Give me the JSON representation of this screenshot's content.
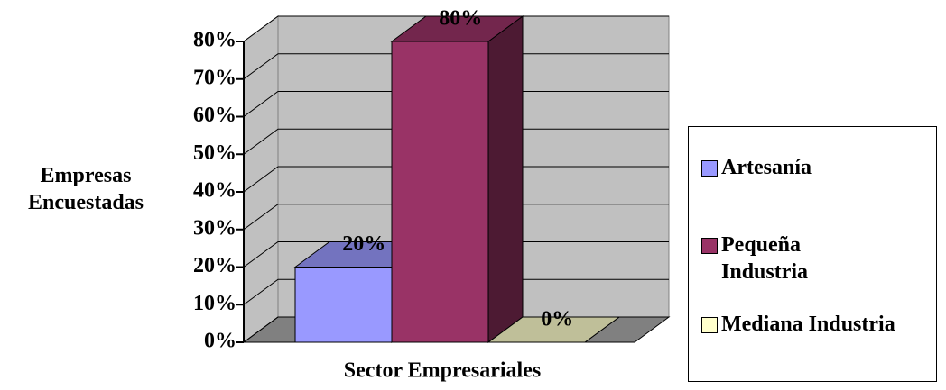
{
  "chart_data": {
    "type": "bar",
    "y_label": "Empresas Encuestadas",
    "x_label": "Sector Empresariales",
    "series": [
      {
        "name": "Artesanía",
        "color": "#9999ff",
        "values": [
          20
        ],
        "value_labels": [
          "20%"
        ]
      },
      {
        "name": "Pequeña Industria",
        "color": "#993366",
        "values": [
          80
        ],
        "value_labels": [
          "80%"
        ]
      },
      {
        "name": "Mediana Industria",
        "color": "#ffffcc",
        "values": [
          0
        ],
        "value_labels": [
          "0%"
        ]
      }
    ],
    "ylim": [
      0,
      80
    ],
    "yticks": [
      {
        "value": 0,
        "label": "0%"
      },
      {
        "value": 10,
        "label": "10%"
      },
      {
        "value": 20,
        "label": "20%"
      },
      {
        "value": 30,
        "label": "30%"
      },
      {
        "value": 40,
        "label": "40%"
      },
      {
        "value": 50,
        "label": "50%"
      },
      {
        "value": 60,
        "label": "60%"
      },
      {
        "value": 70,
        "label": "70%"
      },
      {
        "value": 80,
        "label": "80%"
      }
    ],
    "grid": true,
    "legend": "right"
  }
}
